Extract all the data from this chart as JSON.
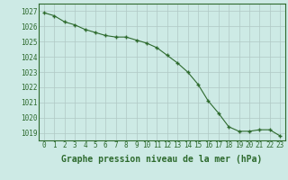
{
  "x": [
    0,
    1,
    2,
    3,
    4,
    5,
    6,
    7,
    8,
    9,
    10,
    11,
    12,
    13,
    14,
    15,
    16,
    17,
    18,
    19,
    20,
    21,
    22,
    23
  ],
  "y": [
    1026.9,
    1026.7,
    1026.3,
    1026.1,
    1025.8,
    1025.6,
    1025.4,
    1025.3,
    1025.3,
    1025.1,
    1024.9,
    1024.6,
    1024.1,
    1023.6,
    1023.0,
    1022.2,
    1021.1,
    1020.3,
    1019.4,
    1019.1,
    1019.1,
    1019.2,
    1019.2,
    1018.8
  ],
  "line_color": "#2d6a2d",
  "marker": "+",
  "bg_color": "#cdeae5",
  "grid_color": "#b0c8c4",
  "xlabel": "Graphe pression niveau de la mer (hPa)",
  "ylim_min": 1018.5,
  "ylim_max": 1027.5,
  "xlim_min": -0.5,
  "xlim_max": 23.5,
  "yticks": [
    1019,
    1020,
    1021,
    1022,
    1023,
    1024,
    1025,
    1026,
    1027
  ],
  "xticks": [
    0,
    1,
    2,
    3,
    4,
    5,
    6,
    7,
    8,
    9,
    10,
    11,
    12,
    13,
    14,
    15,
    16,
    17,
    18,
    19,
    20,
    21,
    22,
    23
  ],
  "tick_fontsize": 5.5,
  "xlabel_fontsize": 7.0,
  "tick_color": "#2d6a2d",
  "label_color": "#2d6a2d",
  "spine_color": "#2d6a2d"
}
